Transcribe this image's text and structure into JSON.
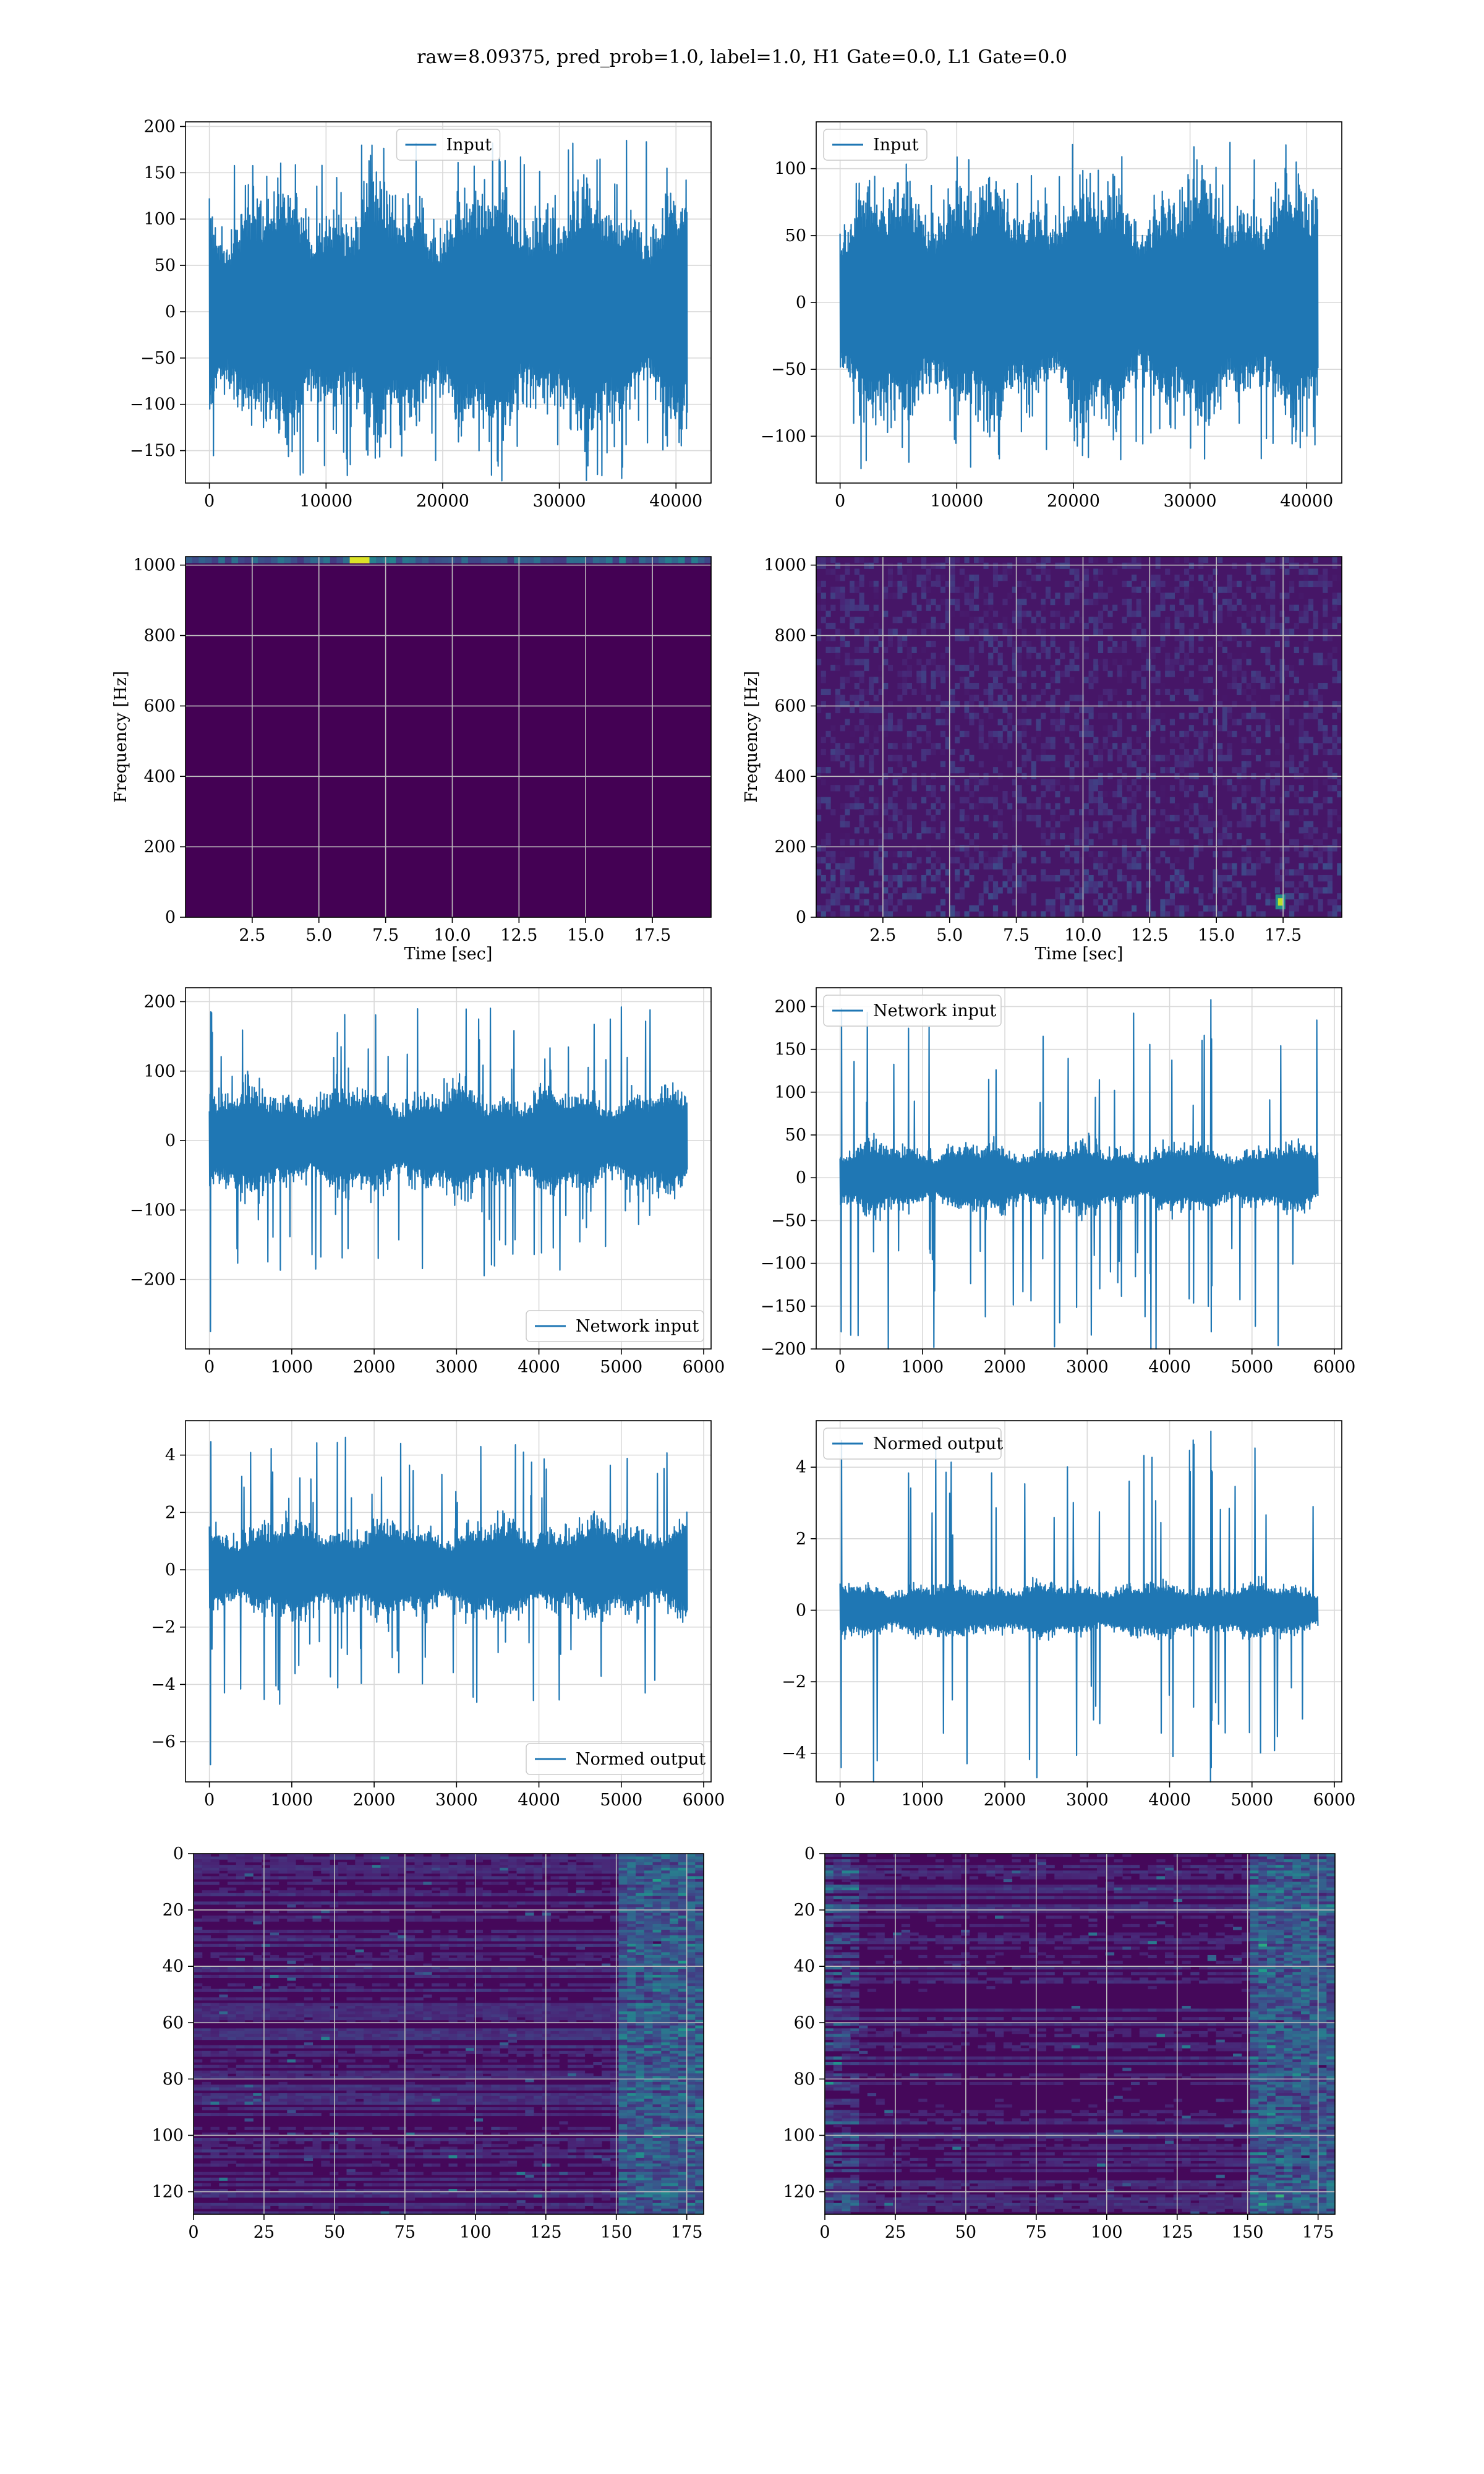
{
  "figure": {
    "suptitle": "raw=8.09375, pred_prob=1.0, label=1.0, H1 Gate=0.0, L1 Gate=0.0",
    "line_color": "#1f77b4"
  },
  "chart_data": [
    {
      "id": "h1-input",
      "type": "line",
      "series": [
        {
          "name": "Input",
          "x_range": [
            0,
            40960
          ],
          "amplitude": 95,
          "peak": 185,
          "mean": 0,
          "num_points": 40960
        }
      ],
      "legend": "upper center",
      "xlim": [
        -2048,
        43008
      ],
      "ylim": [
        -185,
        205
      ],
      "xticks": [
        0,
        10000,
        20000,
        30000,
        40000
      ],
      "yticks": [
        -150,
        -100,
        -50,
        0,
        50,
        100,
        150,
        200
      ],
      "xtick_labels": [
        "0",
        "10000",
        "20000",
        "30000",
        "40000"
      ],
      "ytick_labels": [
        "−150",
        "−100",
        "−50",
        "0",
        "50",
        "100",
        "150",
        "200"
      ],
      "grid": true
    },
    {
      "id": "l1-input",
      "type": "line",
      "series": [
        {
          "name": "Input",
          "x_range": [
            0,
            40960
          ],
          "amplitude": 65,
          "peak": 125,
          "mean": 0,
          "num_points": 40960
        }
      ],
      "legend": "upper left",
      "xlim": [
        -2048,
        43008
      ],
      "ylim": [
        -135,
        135
      ],
      "xticks": [
        0,
        10000,
        20000,
        30000,
        40000
      ],
      "yticks": [
        -100,
        -50,
        0,
        50,
        100
      ],
      "xtick_labels": [
        "0",
        "10000",
        "20000",
        "30000",
        "40000"
      ],
      "ytick_labels": [
        "−100",
        "−50",
        "0",
        "50",
        "100"
      ],
      "grid": true
    },
    {
      "id": "h1-spectrogram",
      "type": "heatmap",
      "xlabel": "Time [sec]",
      "ylabel": "Frequency [Hz]",
      "xlim": [
        0,
        19.7
      ],
      "ylim": [
        0,
        1024
      ],
      "xticks": [
        2.5,
        5.0,
        7.5,
        10.0,
        12.5,
        15.0,
        17.5
      ],
      "yticks": [
        0,
        200,
        400,
        600,
        800,
        1000
      ],
      "xtick_labels": [
        "2.5",
        "5.0",
        "7.5",
        "10.0",
        "12.5",
        "15.0",
        "17.5"
      ],
      "ytick_labels": [
        "0",
        "200",
        "400",
        "600",
        "800",
        "1000"
      ],
      "colormap": "viridis",
      "background_level": 0.0,
      "bright_band": {
        "freq_range": [
          1005,
          1024
        ],
        "level": 0.35,
        "hotspot_time": 6.3
      },
      "grid": true
    },
    {
      "id": "l1-spectrogram",
      "type": "heatmap",
      "xlabel": "Time [sec]",
      "ylabel": "Frequency [Hz]",
      "xlim": [
        0,
        19.7
      ],
      "ylim": [
        0,
        1024
      ],
      "xticks": [
        2.5,
        5.0,
        7.5,
        10.0,
        12.5,
        15.0,
        17.5
      ],
      "yticks": [
        0,
        200,
        400,
        600,
        800,
        1000
      ],
      "xtick_labels": [
        "2.5",
        "5.0",
        "7.5",
        "10.0",
        "12.5",
        "15.0",
        "17.5"
      ],
      "ytick_labels": [
        "0",
        "200",
        "400",
        "600",
        "800",
        "1000"
      ],
      "colormap": "viridis",
      "background_level": 0.06,
      "hotspot": {
        "time": 17.4,
        "freq": 40,
        "level": 0.9
      },
      "grid": true
    },
    {
      "id": "h1-network-input",
      "type": "line",
      "series": [
        {
          "name": "Network input",
          "x_range": [
            0,
            5800
          ],
          "amplitude": 55,
          "peak": 195,
          "min": -275,
          "mean": 0,
          "num_points": 5800
        }
      ],
      "legend": "lower right",
      "xlim": [
        -290,
        6090
      ],
      "ylim": [
        -300,
        220
      ],
      "xticks": [
        0,
        1000,
        2000,
        3000,
        4000,
        5000,
        6000
      ],
      "yticks": [
        -200,
        -100,
        0,
        100,
        200
      ],
      "xtick_labels": [
        "0",
        "1000",
        "2000",
        "3000",
        "4000",
        "5000",
        "6000"
      ],
      "ytick_labels": [
        "−200",
        "−100",
        "0",
        "100",
        "200"
      ],
      "grid": true
    },
    {
      "id": "l1-network-input",
      "type": "line",
      "series": [
        {
          "name": "Network input",
          "x_range": [
            0,
            5800
          ],
          "amplitude": 28,
          "peak": 208,
          "min": -180,
          "glitch_x": 4500,
          "mean": 0,
          "num_points": 5800
        }
      ],
      "legend": "upper left",
      "xlim": [
        -290,
        6090
      ],
      "ylim": [
        -200,
        222
      ],
      "xticks": [
        0,
        1000,
        2000,
        3000,
        4000,
        5000,
        6000
      ],
      "yticks": [
        -200,
        -150,
        -100,
        -50,
        0,
        50,
        100,
        150,
        200
      ],
      "xtick_labels": [
        "0",
        "1000",
        "2000",
        "3000",
        "4000",
        "5000",
        "6000"
      ],
      "ytick_labels": [
        "−200",
        "−150",
        "−100",
        "−50",
        "0",
        "50",
        "100",
        "150",
        "200"
      ],
      "grid": true
    },
    {
      "id": "h1-normed-output",
      "type": "line",
      "series": [
        {
          "name": "Normed output",
          "x_range": [
            0,
            5800
          ],
          "amplitude": 1.2,
          "peak": 4.7,
          "min": -6.8,
          "mean": 0,
          "num_points": 5800
        }
      ],
      "legend": "lower right",
      "xlim": [
        -290,
        6090
      ],
      "ylim": [
        -7.4,
        5.2
      ],
      "xticks": [
        0,
        1000,
        2000,
        3000,
        4000,
        5000,
        6000
      ],
      "yticks": [
        -6,
        -4,
        -2,
        0,
        2,
        4
      ],
      "xtick_labels": [
        "0",
        "1000",
        "2000",
        "3000",
        "4000",
        "5000",
        "6000"
      ],
      "ytick_labels": [
        "−6",
        "−4",
        "−2",
        "0",
        "2",
        "4"
      ],
      "grid": true
    },
    {
      "id": "l1-normed-output",
      "type": "line",
      "series": [
        {
          "name": "Normed output",
          "x_range": [
            0,
            5800
          ],
          "amplitude": 0.55,
          "peak": 5.0,
          "min": -4.4,
          "glitch_x": 4500,
          "mean": 0,
          "num_points": 5800
        }
      ],
      "legend": "upper left",
      "xlim": [
        -290,
        6090
      ],
      "ylim": [
        -4.8,
        5.3
      ],
      "xticks": [
        0,
        1000,
        2000,
        3000,
        4000,
        5000,
        6000
      ],
      "yticks": [
        -4,
        -2,
        0,
        2,
        4
      ],
      "xtick_labels": [
        "0",
        "1000",
        "2000",
        "3000",
        "4000",
        "5000",
        "6000"
      ],
      "ytick_labels": [
        "−4",
        "−2",
        "0",
        "2",
        "4"
      ],
      "grid": true
    },
    {
      "id": "h1-feature-map",
      "type": "heatmap",
      "xlim": [
        0,
        181
      ],
      "ylim": [
        128,
        0
      ],
      "xticks": [
        0,
        25,
        50,
        75,
        100,
        125,
        150,
        175
      ],
      "yticks": [
        0,
        20,
        40,
        60,
        80,
        100,
        120
      ],
      "xtick_labels": [
        "0",
        "25",
        "50",
        "75",
        "100",
        "125",
        "150",
        "175"
      ],
      "ytick_labels": [
        "0",
        "20",
        "40",
        "60",
        "80",
        "100",
        "120"
      ],
      "colormap": "viridis",
      "y_inverted": true,
      "activity": "horizontal streaks, brighter toward columns 150-181",
      "grid": true
    },
    {
      "id": "l1-feature-map",
      "type": "heatmap",
      "xlim": [
        0,
        181
      ],
      "ylim": [
        128,
        0
      ],
      "xticks": [
        0,
        25,
        50,
        75,
        100,
        125,
        150,
        175
      ],
      "yticks": [
        0,
        20,
        40,
        60,
        80,
        100,
        120
      ],
      "xtick_labels": [
        "0",
        "25",
        "50",
        "75",
        "100",
        "125",
        "150",
        "175"
      ],
      "ytick_labels": [
        "0",
        "20",
        "40",
        "60",
        "80",
        "100",
        "120"
      ],
      "colormap": "viridis",
      "y_inverted": true,
      "activity": "horizontal streaks, bright near columns 0-10 and 150-181",
      "grid": true
    }
  ]
}
